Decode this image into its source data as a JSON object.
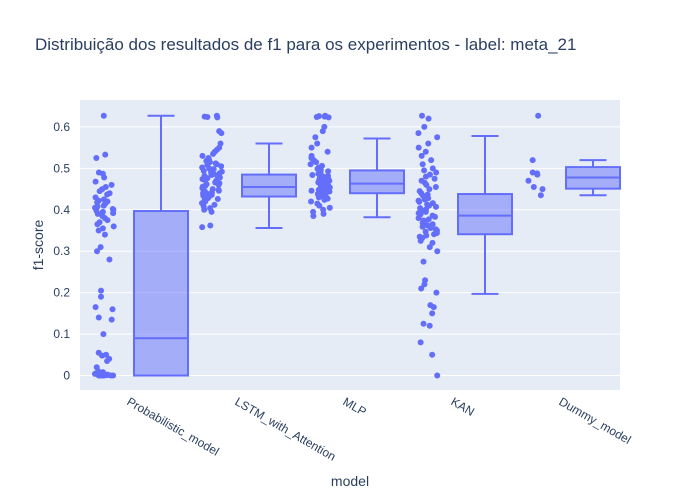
{
  "chart_data": {
    "type": "box",
    "title": "Distribuição dos resultados de f1 para os experimentos - label: meta_21",
    "xlabel": "model",
    "ylabel": "f1-score",
    "ylim": [
      -0.035,
      0.665
    ],
    "yticks": [
      0,
      0.1,
      0.2,
      0.3,
      0.4,
      0.5,
      0.6
    ],
    "ytick_labels": [
      "0",
      "0.1",
      "0.2",
      "0.3",
      "0.4",
      "0.5",
      "0.6"
    ],
    "grid": true,
    "legend": "none",
    "colors": {
      "box": "#636efa",
      "plot_bg": "#e5ecf6",
      "text": "#2a3f5f"
    },
    "categories": [
      "Probabilistic_model",
      "LSTM_with_Attention",
      "MLP",
      "KAN",
      "Dummy_model"
    ],
    "boxes": [
      {
        "category": "Probabilistic_model",
        "min": 0.0,
        "q1": 0.0,
        "median": 0.09,
        "q3": 0.397,
        "max": 0.627
      },
      {
        "category": "LSTM_with_Attention",
        "min": 0.356,
        "q1": 0.432,
        "median": 0.455,
        "q3": 0.485,
        "max": 0.56
      },
      {
        "category": "MLP",
        "min": 0.382,
        "q1": 0.44,
        "median": 0.463,
        "q3": 0.495,
        "max": 0.572
      },
      {
        "category": "KAN",
        "min": 0.197,
        "q1": 0.341,
        "median": 0.386,
        "q3": 0.438,
        "max": 0.578
      },
      {
        "category": "Dummy_model",
        "min": 0.435,
        "q1": 0.451,
        "median": 0.478,
        "q3": 0.503,
        "max": 0.52
      }
    ],
    "points": [
      {
        "category": "Probabilistic_model",
        "values": [
          0.627,
          0.533,
          0.525,
          0.49,
          0.487,
          0.478,
          0.468,
          0.46,
          0.455,
          0.45,
          0.445,
          0.44,
          0.437,
          0.43,
          0.425,
          0.422,
          0.42,
          0.418,
          0.415,
          0.41,
          0.408,
          0.405,
          0.402,
          0.4,
          0.398,
          0.395,
          0.392,
          0.39,
          0.385,
          0.38,
          0.375,
          0.37,
          0.365,
          0.36,
          0.355,
          0.35,
          0.34,
          0.31,
          0.3,
          0.28,
          0.205,
          0.19,
          0.165,
          0.16,
          0.14,
          0.135,
          0.1,
          0.055,
          0.05,
          0.048,
          0.04,
          0.035,
          0.02,
          0.01,
          0.008,
          0.005,
          0.004,
          0.003,
          0.002,
          0.001,
          0.0,
          0.0,
          0.0,
          0.0,
          0.0,
          0.0,
          0.0,
          0.0,
          0.0,
          0.0
        ]
      },
      {
        "category": "LSTM_with_Attention",
        "values": [
          0.627,
          0.625,
          0.624,
          0.623,
          0.59,
          0.585,
          0.56,
          0.55,
          0.545,
          0.54,
          0.535,
          0.53,
          0.525,
          0.52,
          0.518,
          0.515,
          0.512,
          0.51,
          0.508,
          0.505,
          0.502,
          0.5,
          0.498,
          0.496,
          0.494,
          0.492,
          0.49,
          0.488,
          0.486,
          0.484,
          0.482,
          0.48,
          0.478,
          0.476,
          0.474,
          0.472,
          0.47,
          0.468,
          0.466,
          0.464,
          0.462,
          0.46,
          0.458,
          0.456,
          0.454,
          0.452,
          0.45,
          0.448,
          0.446,
          0.444,
          0.442,
          0.44,
          0.438,
          0.436,
          0.434,
          0.432,
          0.43,
          0.428,
          0.426,
          0.424,
          0.42,
          0.416,
          0.412,
          0.408,
          0.404,
          0.4,
          0.395,
          0.362,
          0.358
        ]
      },
      {
        "category": "MLP",
        "values": [
          0.627,
          0.626,
          0.625,
          0.624,
          0.623,
          0.6,
          0.59,
          0.575,
          0.56,
          0.55,
          0.54,
          0.53,
          0.525,
          0.52,
          0.515,
          0.51,
          0.506,
          0.502,
          0.499,
          0.496,
          0.493,
          0.49,
          0.487,
          0.484,
          0.482,
          0.48,
          0.478,
          0.476,
          0.474,
          0.472,
          0.47,
          0.468,
          0.466,
          0.464,
          0.462,
          0.46,
          0.458,
          0.456,
          0.454,
          0.452,
          0.45,
          0.448,
          0.446,
          0.444,
          0.442,
          0.44,
          0.438,
          0.436,
          0.434,
          0.432,
          0.43,
          0.427,
          0.424,
          0.42,
          0.415,
          0.41,
          0.405,
          0.4,
          0.395,
          0.39,
          0.385
        ]
      },
      {
        "category": "KAN",
        "values": [
          0.627,
          0.62,
          0.6,
          0.585,
          0.575,
          0.56,
          0.55,
          0.54,
          0.53,
          0.52,
          0.51,
          0.5,
          0.495,
          0.49,
          0.485,
          0.48,
          0.475,
          0.47,
          0.465,
          0.46,
          0.455,
          0.45,
          0.445,
          0.44,
          0.437,
          0.434,
          0.431,
          0.428,
          0.425,
          0.422,
          0.419,
          0.416,
          0.413,
          0.41,
          0.407,
          0.404,
          0.401,
          0.398,
          0.395,
          0.392,
          0.389,
          0.386,
          0.383,
          0.38,
          0.377,
          0.374,
          0.371,
          0.368,
          0.365,
          0.362,
          0.359,
          0.356,
          0.353,
          0.35,
          0.347,
          0.344,
          0.341,
          0.338,
          0.335,
          0.332,
          0.325,
          0.32,
          0.31,
          0.3,
          0.275,
          0.23,
          0.22,
          0.21,
          0.2,
          0.17,
          0.165,
          0.15,
          0.125,
          0.12,
          0.08,
          0.05,
          0.0
        ]
      },
      {
        "category": "Dummy_model",
        "values": [
          0.627,
          0.52,
          0.49,
          0.488,
          0.485,
          0.47,
          0.455,
          0.45,
          0.435
        ]
      }
    ]
  }
}
